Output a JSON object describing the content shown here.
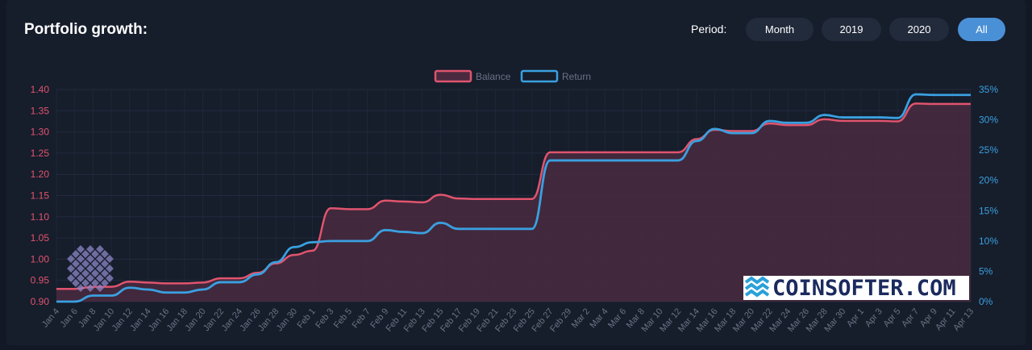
{
  "header": {
    "title": "Portfolio growth:",
    "period_label": "Period:"
  },
  "period_buttons": [
    {
      "label": "Month",
      "active": false
    },
    {
      "label": "2019",
      "active": false
    },
    {
      "label": "2020",
      "active": false
    },
    {
      "label": "All",
      "active": true
    }
  ],
  "watermark": {
    "text": "COINSOFTER.COM"
  },
  "colors": {
    "balance": "#e0546e",
    "return": "#3aa0e0",
    "fill": "#4a2a3f",
    "accent": "#4a90d6"
  },
  "chart_data": {
    "type": "line",
    "legend_position": "top-center",
    "grid": true,
    "x": [
      "Jan 4",
      "Jan 6",
      "Jan 8",
      "Jan 10",
      "Jan 12",
      "Jan 14",
      "Jan 16",
      "Jan 18",
      "Jan 20",
      "Jan 22",
      "Jan 24",
      "Jan 26",
      "Jan 28",
      "Jan 30",
      "Feb 1",
      "Feb 3",
      "Feb 5",
      "Feb 7",
      "Feb 9",
      "Feb 11",
      "Feb 13",
      "Feb 15",
      "Feb 17",
      "Feb 19",
      "Feb 21",
      "Feb 23",
      "Feb 25",
      "Feb 27",
      "Feb 29",
      "Mar 2",
      "Mar 4",
      "Mar 6",
      "Mar 8",
      "Mar 10",
      "Mar 12",
      "Mar 14",
      "Mar 16",
      "Mar 18",
      "Mar 20",
      "Mar 22",
      "Mar 24",
      "Mar 26",
      "Mar 28",
      "Mar 30",
      "Apr 1",
      "Apr 3",
      "Apr 5",
      "Apr 7",
      "Apr 9",
      "Apr 11",
      "Apr 13"
    ],
    "y_left": {
      "ylim": [
        0.9,
        1.4
      ],
      "ticks": [
        "0.90",
        "0.95",
        "1.00",
        "1.05",
        "1.10",
        "1.15",
        "1.20",
        "1.25",
        "1.30",
        "1.35",
        "1.40"
      ]
    },
    "y_right": {
      "ylim": [
        0,
        35
      ],
      "ticks": [
        "0%",
        "5%",
        "10%",
        "15%",
        "20%",
        "25%",
        "30%",
        "35%"
      ]
    },
    "series": [
      {
        "name": "Balance",
        "axis": "left",
        "values": [
          0.93,
          0.93,
          0.935,
          0.935,
          0.947,
          0.945,
          0.943,
          0.943,
          0.945,
          0.955,
          0.955,
          0.968,
          0.99,
          1.01,
          1.02,
          1.12,
          1.118,
          1.118,
          1.138,
          1.136,
          1.134,
          1.152,
          1.143,
          1.142,
          1.142,
          1.142,
          1.142,
          1.252,
          1.252,
          1.252,
          1.252,
          1.252,
          1.252,
          1.252,
          1.252,
          1.283,
          1.305,
          1.302,
          1.302,
          1.32,
          1.316,
          1.316,
          1.33,
          1.326,
          1.326,
          1.326,
          1.325,
          1.367,
          1.366,
          1.366,
          1.366
        ]
      },
      {
        "name": "Return",
        "axis": "right",
        "values": [
          0,
          0,
          1,
          1,
          2.3,
          2,
          1.5,
          1.5,
          2,
          3.2,
          3.2,
          4.5,
          6.5,
          9,
          9.8,
          10,
          10,
          10,
          11.8,
          11.5,
          11.3,
          13,
          12,
          12,
          12,
          12,
          12,
          23.3,
          23.3,
          23.3,
          23.3,
          23.3,
          23.3,
          23.3,
          23.3,
          26.5,
          28.5,
          27.8,
          27.8,
          29.8,
          29.5,
          29.5,
          30.8,
          30.4,
          30.4,
          30.4,
          30.3,
          34.2,
          34.1,
          34.1,
          34.1
        ]
      }
    ]
  }
}
